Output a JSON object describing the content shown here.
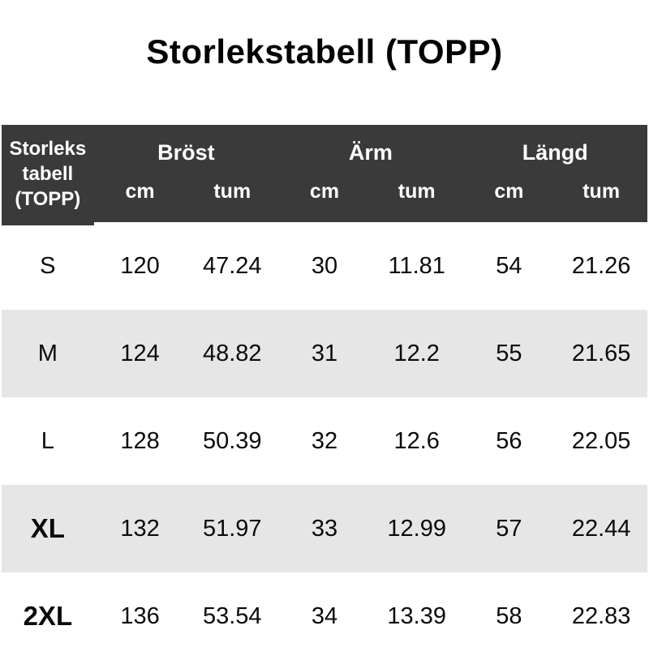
{
  "title": "Storlekstabell (TOPP)",
  "colors": {
    "header_bg": "#3a3a3a",
    "header_text": "#ffffff",
    "row_bg": "#ffffff",
    "row_alt_bg": "#e7e6e7",
    "body_text": "#0b0b0b"
  },
  "table": {
    "corner_lines": [
      "Storleks",
      "tabell",
      "(TOPP)"
    ],
    "groups": [
      "Bröst",
      "Ärm",
      "Längd"
    ],
    "units": [
      "cm",
      "tum",
      "cm",
      "tum",
      "cm",
      "tum"
    ],
    "rows": [
      {
        "size": "S",
        "values": [
          "120",
          "47.24",
          "30",
          "11.81",
          "54",
          "21.26"
        ]
      },
      {
        "size": "M",
        "values": [
          "124",
          "48.82",
          "31",
          "12.2",
          "55",
          "21.65"
        ]
      },
      {
        "size": "L",
        "values": [
          "128",
          "50.39",
          "32",
          "12.6",
          "56",
          "22.05"
        ]
      },
      {
        "size": "XL",
        "values": [
          "132",
          "51.97",
          "33",
          "12.99",
          "57",
          "22.44"
        ]
      },
      {
        "size": "2XL",
        "values": [
          "136",
          "53.54",
          "34",
          "13.39",
          "58",
          "22.83"
        ]
      }
    ]
  },
  "chart_data": {
    "type": "table",
    "title": "Storlekstabell (TOPP)",
    "column_groups": [
      "Bröst",
      "Ärm",
      "Längd"
    ],
    "columns": [
      "Storlekstabell (TOPP)",
      "Bröst cm",
      "Bröst tum",
      "Ärm cm",
      "Ärm tum",
      "Längd cm",
      "Längd tum"
    ],
    "rows": [
      [
        "S",
        120,
        47.24,
        30,
        11.81,
        54,
        21.26
      ],
      [
        "M",
        124,
        48.82,
        31,
        12.2,
        55,
        21.65
      ],
      [
        "L",
        128,
        50.39,
        32,
        12.6,
        56,
        22.05
      ],
      [
        "XL",
        132,
        51.97,
        33,
        12.99,
        57,
        22.44
      ],
      [
        "2XL",
        136,
        53.54,
        34,
        13.39,
        58,
        22.83
      ]
    ]
  }
}
